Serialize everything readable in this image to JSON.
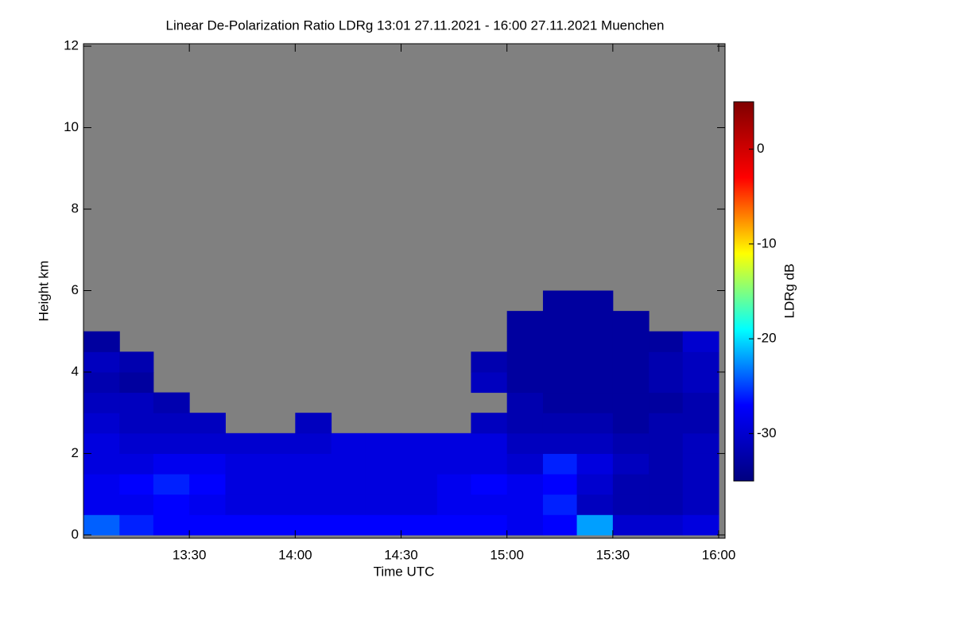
{
  "chart_data": {
    "type": "heatmap",
    "title": "Linear De-Polarization Ratio LDRg   13:01 27.11.2021 - 16:00 27.11.2021 Muenchen",
    "x_label": "Time UTC",
    "y_label": "Height km",
    "colorbar_label": "LDRg dB",
    "xlim": [
      13.0,
      16.03
    ],
    "xticks": [
      {
        "value": 13.5,
        "label": "13:30"
      },
      {
        "value": 14,
        "label": "14:00"
      },
      {
        "value": 14.5,
        "label": "14:30"
      },
      {
        "value": 15,
        "label": "15:00"
      },
      {
        "value": 15.5,
        "label": "15:30"
      },
      {
        "value": 16,
        "label": "16:00"
      }
    ],
    "ylim": [
      -0.08,
      12.06
    ],
    "yticks": [
      0,
      2,
      4,
      6,
      8,
      10,
      12
    ],
    "clim": [
      -35,
      5
    ],
    "cticks": [
      0,
      -10,
      -20,
      -30
    ],
    "colormap": [
      "#00007f",
      "#0000ff",
      "#00ffff",
      "#ffff00",
      "#ff0000",
      "#7f0000"
    ],
    "missing_color": "#808080",
    "x_bins": [
      13.0,
      13.17,
      13.33,
      13.5,
      13.67,
      13.83,
      14.0,
      14.17,
      14.33,
      14.5,
      14.67,
      14.83,
      15.0,
      15.17,
      15.33,
      15.5,
      15.67,
      15.83,
      16.0
    ],
    "y_bins": [
      0,
      0.5,
      1,
      1.5,
      2,
      2.5,
      3,
      3.5,
      4,
      4.5,
      5,
      5.5,
      6
    ],
    "z": [
      [
        -24,
        -26,
        -27,
        -27,
        -27,
        -27,
        -27,
        -27,
        -27,
        -27,
        -27,
        -27,
        -28,
        -27,
        -22,
        -30,
        -30,
        -29
      ],
      [
        -28,
        -28,
        -27,
        -28,
        -29,
        -29,
        -29,
        -29,
        -29,
        -29,
        -28,
        -28,
        -28,
        -26,
        -31,
        -32,
        -32,
        -31
      ],
      [
        -28,
        -27,
        -26,
        -27,
        -29,
        -29,
        -29,
        -29,
        -29,
        -29,
        -28,
        -27,
        -28,
        -27,
        -30,
        -32,
        -32,
        -31
      ],
      [
        -29,
        -29,
        -28,
        -28,
        -29,
        -29,
        -29,
        -29,
        -29,
        -29,
        -29,
        -29,
        -30,
        -26,
        -29,
        -31,
        -32,
        -31
      ],
      [
        -29,
        -30,
        -30,
        -30,
        -30,
        -30,
        -30,
        -29,
        -29,
        -29,
        -29,
        -29,
        -31,
        -31,
        -31,
        -32,
        -32,
        -31
      ],
      [
        -30,
        -31,
        -31,
        -31,
        null,
        null,
        -31,
        null,
        null,
        null,
        null,
        -31,
        -32,
        -32,
        -32,
        -33,
        -32,
        -32
      ],
      [
        -31,
        -31,
        -32,
        null,
        null,
        null,
        null,
        null,
        null,
        null,
        null,
        null,
        -32,
        -33,
        -33,
        -33,
        -33,
        -32
      ],
      [
        -32,
        -33,
        null,
        null,
        null,
        null,
        null,
        null,
        null,
        null,
        null,
        -31,
        -33,
        -33,
        -33,
        -33,
        -32,
        -31
      ],
      [
        -31,
        -32,
        null,
        null,
        null,
        null,
        null,
        null,
        null,
        null,
        null,
        -32,
        -33,
        -33,
        -33,
        -33,
        -32,
        -31
      ],
      [
        -33,
        null,
        null,
        null,
        null,
        null,
        null,
        null,
        null,
        null,
        null,
        null,
        -33,
        -33,
        -33,
        -33,
        -33,
        -30
      ],
      [
        null,
        null,
        null,
        null,
        null,
        null,
        null,
        null,
        null,
        null,
        null,
        null,
        -33,
        -33,
        -33,
        -33,
        null,
        null
      ],
      [
        null,
        null,
        null,
        null,
        null,
        null,
        null,
        null,
        null,
        null,
        null,
        null,
        null,
        -33,
        -33,
        null,
        null,
        null
      ]
    ]
  }
}
